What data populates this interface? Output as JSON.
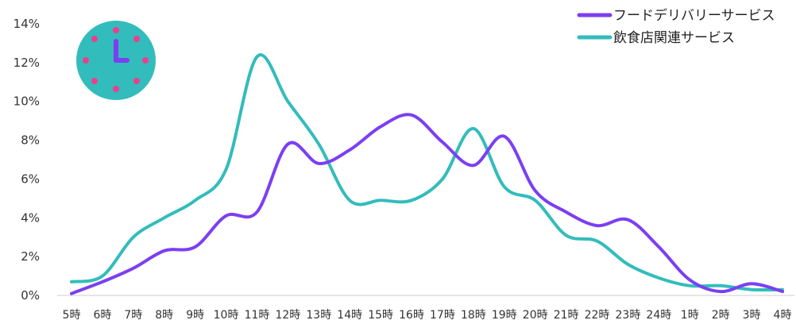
{
  "chart_data": {
    "type": "line",
    "x": [
      "5時",
      "6時",
      "7時",
      "8時",
      "9時",
      "10時",
      "11時",
      "12時",
      "13時",
      "14時",
      "15時",
      "16時",
      "17時",
      "18時",
      "19時",
      "20時",
      "21時",
      "22時",
      "23時",
      "24時",
      "1時",
      "2時",
      "3時",
      "4時"
    ],
    "series": [
      {
        "name": "フードデリバリーサービス",
        "color": "#7b3ff2",
        "values": [
          0.1,
          0.7,
          1.4,
          2.3,
          2.5,
          4.1,
          4.3,
          7.8,
          6.8,
          7.5,
          8.7,
          9.3,
          7.9,
          6.7,
          8.2,
          5.4,
          4.3,
          3.6,
          3.9,
          2.5,
          0.8,
          0.2,
          0.6,
          0.2
        ]
      },
      {
        "name": "飲食店関連サービス",
        "color": "#33bcbc",
        "values": [
          0.7,
          1.0,
          3.0,
          4.0,
          4.9,
          6.5,
          12.3,
          10.0,
          7.8,
          4.9,
          4.9,
          4.9,
          6.0,
          8.6,
          5.6,
          4.9,
          3.1,
          2.8,
          1.6,
          0.9,
          0.5,
          0.5,
          0.3,
          0.3
        ]
      }
    ],
    "yticks": [
      "0%",
      "2%",
      "4%",
      "6%",
      "8%",
      "10%",
      "12%",
      "14%"
    ],
    "ylim": [
      0,
      14
    ],
    "grid": false,
    "legend": "top-right",
    "decoration": "clock-icon"
  }
}
